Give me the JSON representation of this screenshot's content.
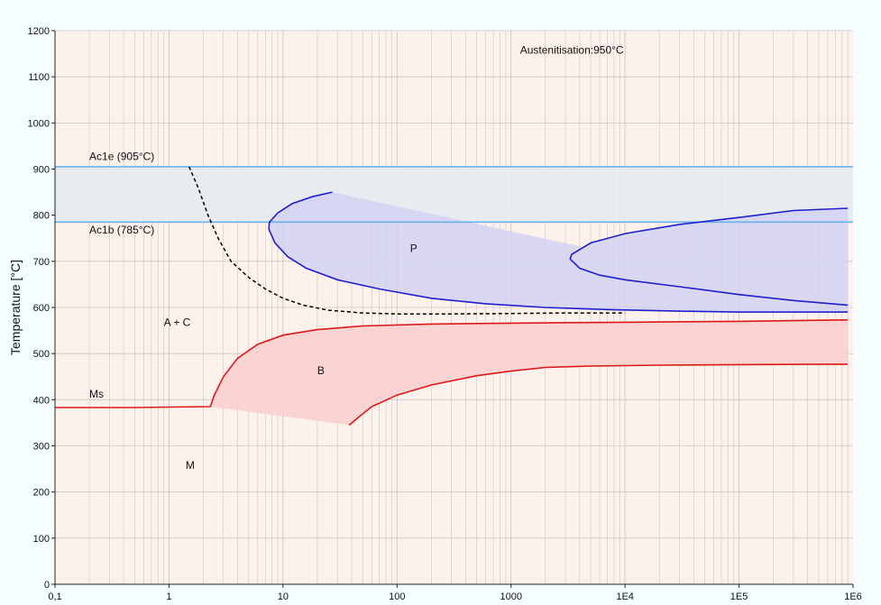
{
  "chart_data": {
    "type": "line",
    "title": "",
    "xlabel": "",
    "ylabel": "Temperature [°C]",
    "x_scale": "log",
    "xlim": [
      0.1,
      1000000
    ],
    "ylim": [
      0,
      1200
    ],
    "grid": true,
    "x_tick_values": [
      0.1,
      1,
      10,
      100,
      1000,
      10000,
      100000,
      1000000
    ],
    "x_tick_labels": [
      "0,1",
      "1",
      "10",
      "100",
      "1000",
      "1E4",
      "1E5",
      "1E6"
    ],
    "y_ticks": [
      0,
      100,
      200,
      300,
      400,
      500,
      600,
      700,
      800,
      900,
      1000,
      1100,
      1200
    ],
    "colors": {
      "plot_background": "#fdf1ec",
      "grid": "#c8c8c8",
      "ac_lines": "#69b2f0",
      "ac_band": "#e6eaf0",
      "pearlite_curve": "#1f1fcf",
      "pearlite_fill": "#d2d2f2",
      "bainite_curve": "#dd1818",
      "bainite_fill": "#f9d0d0",
      "ferrite_curve": "#000000"
    },
    "annotations": [
      {
        "text": "Austenitisation:950°C",
        "x": 1200,
        "y": 1150
      },
      {
        "text": "Ac1e (905°C)",
        "x": 0.2,
        "y": 920
      },
      {
        "text": "Ac1b (785°C)",
        "x": 0.2,
        "y": 760
      },
      {
        "text": "P",
        "x": 130,
        "y": 720
      },
      {
        "text": "A + C",
        "x": 0.9,
        "y": 560
      },
      {
        "text": "B",
        "x": 20,
        "y": 455
      },
      {
        "text": "Ms",
        "x": 0.2,
        "y": 405
      },
      {
        "text": "M",
        "x": 1.4,
        "y": 250
      }
    ],
    "reference_lines": [
      {
        "label": "Ac1e (905°C)",
        "y": 905
      },
      {
        "label": "Ac1b (785°C)",
        "y": 785
      }
    ],
    "series": [
      {
        "key": "ferrite_start",
        "style": "dashed",
        "x": [
          1.5,
          1.8,
          2.2,
          2.7,
          3.5,
          5,
          7,
          10,
          15,
          25,
          50,
          100,
          300,
          1000,
          3000,
          10000
        ],
        "y": [
          905,
          860,
          800,
          750,
          700,
          665,
          640,
          620,
          605,
          594,
          588,
          586,
          586,
          587,
          588,
          588
        ]
      },
      {
        "key": "pearlite_start",
        "x": [
          27,
          18,
          12,
          9,
          7.6,
          7.5,
          8.5,
          11,
          16,
          30,
          70,
          200,
          600,
          2000,
          8000,
          30000,
          100000,
          300000,
          900000
        ],
        "y": [
          850,
          840,
          825,
          805,
          785,
          770,
          740,
          710,
          685,
          660,
          640,
          620,
          608,
          600,
          595,
          592,
          590,
          590,
          590
        ]
      },
      {
        "key": "pearlite_finish",
        "x": [
          900000,
          300000,
          100000,
          30000,
          10000,
          5000,
          3400,
          3300,
          4000,
          6000,
          10000,
          30000,
          100000,
          300000,
          900000
        ],
        "y": [
          815,
          810,
          795,
          780,
          760,
          740,
          715,
          705,
          685,
          670,
          660,
          645,
          628,
          615,
          605
        ]
      },
      {
        "key": "bainite_start",
        "x": [
          0.1,
          0.5,
          1,
          2.3,
          2.5,
          3,
          4,
          6,
          10,
          20,
          50,
          200,
          1000,
          10000,
          100000,
          900000
        ],
        "y": [
          383,
          383,
          384,
          385,
          410,
          450,
          490,
          520,
          540,
          552,
          560,
          564,
          566,
          568,
          570,
          573
        ]
      },
      {
        "key": "bainite_finish",
        "x": [
          38,
          45,
          60,
          100,
          200,
          500,
          1000,
          2000,
          5000,
          20000,
          100000,
          900000
        ],
        "y": [
          345,
          360,
          385,
          410,
          432,
          452,
          462,
          470,
          473,
          475,
          476,
          477
        ]
      },
      {
        "key": "martensite_start",
        "x": [
          0.1,
          2.3
        ],
        "y": [
          383,
          385
        ]
      }
    ]
  }
}
